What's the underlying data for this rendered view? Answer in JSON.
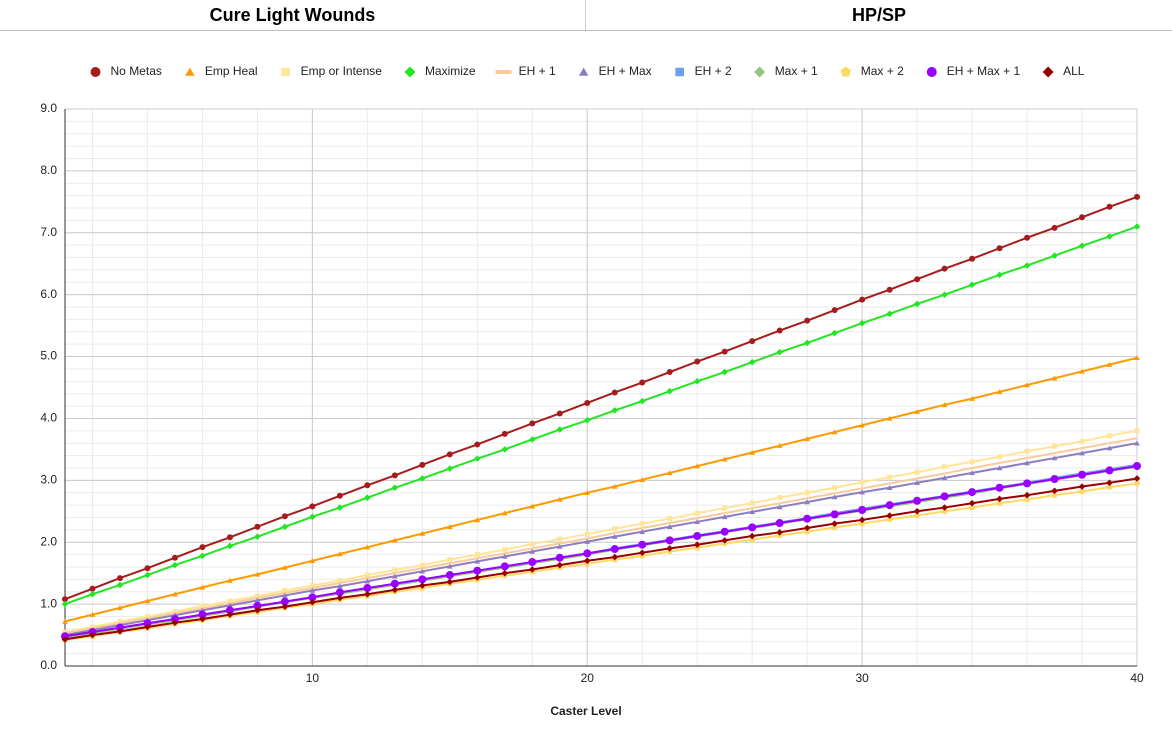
{
  "header": {
    "left": "Cure Light Wounds",
    "right": "HP/SP"
  },
  "chart_data": {
    "type": "line",
    "x_label": "Caster Level",
    "x": [
      1,
      2,
      3,
      4,
      5,
      6,
      7,
      8,
      9,
      10,
      11,
      12,
      13,
      14,
      15,
      16,
      17,
      18,
      19,
      20,
      21,
      22,
      23,
      24,
      25,
      26,
      27,
      28,
      29,
      30,
      31,
      32,
      33,
      34,
      35,
      36,
      37,
      38,
      39,
      40
    ],
    "xlim": [
      1,
      40
    ],
    "xticks": [
      10,
      20,
      30,
      40
    ],
    "ylim": [
      0,
      9
    ],
    "yticks": [
      {
        "value": 0,
        "label": "0.0"
      },
      {
        "value": 1,
        "label": "1.0"
      },
      {
        "value": 2,
        "label": "2.0"
      },
      {
        "value": 3,
        "label": "3.0"
      },
      {
        "value": 4,
        "label": "4.0"
      },
      {
        "value": 5,
        "label": "5.0"
      },
      {
        "value": 6,
        "label": "6.0"
      },
      {
        "value": 7,
        "label": "7.0"
      },
      {
        "value": 8,
        "label": "8.0"
      },
      {
        "value": 9,
        "label": "9.0"
      }
    ],
    "grid": true,
    "minor_grid": true,
    "legend": "top",
    "series": [
      {
        "name": "No Metas",
        "color": "#a61c1c",
        "marker": "circle",
        "values": [
          1.08,
          1.25,
          1.42,
          1.58,
          1.75,
          1.92,
          2.08,
          2.25,
          2.42,
          2.58,
          2.75,
          2.92,
          3.08,
          3.25,
          3.42,
          3.58,
          3.75,
          3.92,
          4.08,
          4.25,
          4.42,
          4.58,
          4.75,
          4.92,
          5.08,
          5.25,
          5.42,
          5.58,
          5.75,
          5.92,
          6.08,
          6.25,
          6.42,
          6.58,
          6.75,
          6.92,
          7.08,
          7.25,
          7.42,
          7.58
        ]
      },
      {
        "name": "Emp Heal",
        "color": "#ff9900",
        "marker": "triangle",
        "values": [
          0.72,
          0.83,
          0.94,
          1.05,
          1.16,
          1.27,
          1.38,
          1.48,
          1.59,
          1.7,
          1.81,
          1.92,
          2.03,
          2.14,
          2.25,
          2.36,
          2.47,
          2.58,
          2.69,
          2.8,
          2.9,
          3.01,
          3.12,
          3.23,
          3.34,
          3.45,
          3.56,
          3.67,
          3.78,
          3.89,
          4.0,
          4.11,
          4.22,
          4.32,
          4.43,
          4.54,
          4.65,
          4.76,
          4.87,
          4.98
        ]
      },
      {
        "name": "Emp or Intense",
        "color": "#ffe599",
        "marker": "square",
        "values": [
          0.55,
          0.63,
          0.72,
          0.8,
          0.88,
          0.97,
          1.05,
          1.13,
          1.22,
          1.3,
          1.38,
          1.47,
          1.55,
          1.63,
          1.72,
          1.8,
          1.88,
          1.97,
          2.05,
          2.13,
          2.22,
          2.3,
          2.38,
          2.47,
          2.55,
          2.63,
          2.72,
          2.8,
          2.88,
          2.97,
          3.05,
          3.13,
          3.22,
          3.3,
          3.38,
          3.47,
          3.55,
          3.63,
          3.72,
          3.8
        ]
      },
      {
        "name": "Maximize",
        "color": "#22e622",
        "marker": "diamond",
        "values": [
          1.0,
          1.16,
          1.31,
          1.47,
          1.63,
          1.78,
          1.94,
          2.09,
          2.25,
          2.41,
          2.56,
          2.72,
          2.88,
          3.03,
          3.19,
          3.35,
          3.5,
          3.66,
          3.82,
          3.97,
          4.13,
          4.28,
          4.44,
          4.6,
          4.75,
          4.91,
          5.07,
          5.22,
          5.38,
          5.54,
          5.69,
          5.85,
          6.0,
          6.16,
          6.32,
          6.47,
          6.63,
          6.79,
          6.94,
          7.1
        ]
      },
      {
        "name": "EH + 1",
        "color": "#f9cb9c",
        "marker": "none",
        "values": [
          0.53,
          0.61,
          0.69,
          0.77,
          0.85,
          0.93,
          1.01,
          1.1,
          1.18,
          1.26,
          1.34,
          1.42,
          1.5,
          1.58,
          1.66,
          1.74,
          1.82,
          1.9,
          1.98,
          2.06,
          2.15,
          2.23,
          2.31,
          2.39,
          2.47,
          2.55,
          2.63,
          2.71,
          2.79,
          2.87,
          2.95,
          3.03,
          3.11,
          3.2,
          3.28,
          3.36,
          3.44,
          3.52,
          3.6,
          3.68
        ]
      },
      {
        "name": "EH + Max",
        "color": "#8e7cc3",
        "marker": "triangle",
        "values": [
          0.5,
          0.58,
          0.66,
          0.74,
          0.82,
          0.9,
          0.98,
          1.06,
          1.14,
          1.22,
          1.29,
          1.37,
          1.45,
          1.53,
          1.61,
          1.69,
          1.77,
          1.85,
          1.93,
          2.01,
          2.09,
          2.17,
          2.25,
          2.33,
          2.41,
          2.49,
          2.57,
          2.65,
          2.73,
          2.81,
          2.88,
          2.96,
          3.04,
          3.12,
          3.2,
          3.28,
          3.36,
          3.44,
          3.52,
          3.6
        ]
      },
      {
        "name": "EH + 2",
        "color": "#6d9eeb",
        "marker": "square",
        "values": [
          0.47,
          0.54,
          0.61,
          0.68,
          0.76,
          0.83,
          0.9,
          0.97,
          1.04,
          1.11,
          1.18,
          1.25,
          1.33,
          1.4,
          1.47,
          1.54,
          1.61,
          1.68,
          1.75,
          1.82,
          1.9,
          1.97,
          2.04,
          2.11,
          2.18,
          2.25,
          2.32,
          2.39,
          2.47,
          2.54,
          2.61,
          2.68,
          2.75,
          2.82,
          2.89,
          2.96,
          3.04,
          3.11,
          3.18,
          3.25
        ]
      },
      {
        "name": "Max + 1",
        "color": "#93c47d",
        "marker": "diamond",
        "values": [
          0.46,
          0.53,
          0.6,
          0.67,
          0.74,
          0.81,
          0.88,
          0.96,
          1.03,
          1.1,
          1.17,
          1.24,
          1.31,
          1.38,
          1.45,
          1.52,
          1.59,
          1.66,
          1.73,
          1.8,
          1.88,
          1.95,
          2.02,
          2.09,
          2.16,
          2.23,
          2.3,
          2.37,
          2.44,
          2.51,
          2.58,
          2.65,
          2.72,
          2.79,
          2.87,
          2.94,
          3.01,
          3.08,
          3.15,
          3.22
        ]
      },
      {
        "name": "Max + 2",
        "color": "#ffd966",
        "marker": "pentagon",
        "values": [
          0.42,
          0.48,
          0.55,
          0.61,
          0.68,
          0.74,
          0.81,
          0.87,
          0.94,
          1.0,
          1.07,
          1.13,
          1.2,
          1.26,
          1.33,
          1.39,
          1.46,
          1.52,
          1.59,
          1.65,
          1.72,
          1.78,
          1.85,
          1.91,
          1.98,
          2.04,
          2.11,
          2.17,
          2.24,
          2.3,
          2.37,
          2.43,
          2.5,
          2.56,
          2.63,
          2.69,
          2.76,
          2.82,
          2.89,
          2.95
        ]
      },
      {
        "name": "EH + Max + 1",
        "color": "#9900ff",
        "marker": "circle",
        "values": [
          0.48,
          0.55,
          0.62,
          0.69,
          0.76,
          0.83,
          0.9,
          0.97,
          1.04,
          1.11,
          1.19,
          1.26,
          1.33,
          1.4,
          1.47,
          1.54,
          1.61,
          1.68,
          1.75,
          1.82,
          1.89,
          1.96,
          2.03,
          2.1,
          2.17,
          2.24,
          2.31,
          2.38,
          2.45,
          2.52,
          2.6,
          2.67,
          2.74,
          2.81,
          2.88,
          2.95,
          3.02,
          3.09,
          3.16,
          3.23
        ]
      },
      {
        "name": "ALL",
        "color": "#990000",
        "marker": "diamond",
        "values": [
          0.43,
          0.5,
          0.56,
          0.63,
          0.7,
          0.76,
          0.83,
          0.9,
          0.96,
          1.03,
          1.1,
          1.16,
          1.23,
          1.3,
          1.36,
          1.43,
          1.5,
          1.56,
          1.63,
          1.7,
          1.76,
          1.83,
          1.9,
          1.96,
          2.03,
          2.1,
          2.16,
          2.23,
          2.3,
          2.36,
          2.43,
          2.5,
          2.56,
          2.63,
          2.7,
          2.76,
          2.83,
          2.9,
          2.96,
          3.03
        ]
      }
    ]
  }
}
